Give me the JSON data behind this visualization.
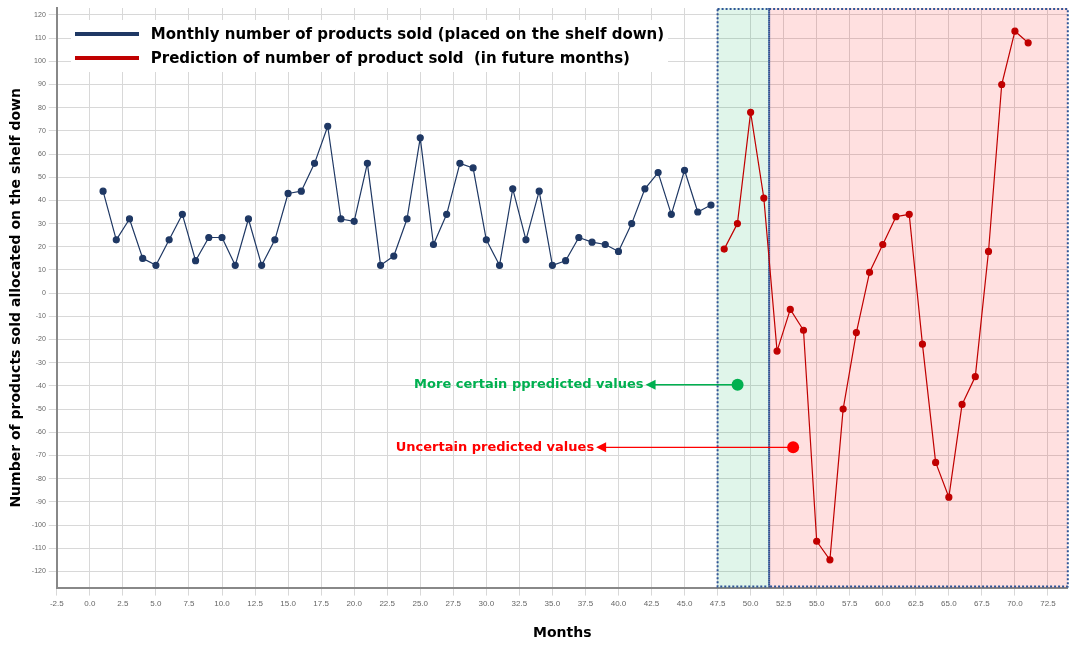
{
  "chart_data": {
    "type": "line",
    "xlabel": "Months",
    "ylabel": "Number of products sold allocated on the shelf down",
    "series": [
      {
        "name": "Monthly number of products sold (placed on the shelf down)",
        "color": "#1f3864",
        "x": [
          1,
          2,
          3,
          4,
          5,
          6,
          7,
          8,
          9,
          10,
          11,
          12,
          13,
          14,
          15,
          16,
          17,
          18,
          19,
          20,
          21,
          22,
          23,
          24,
          25,
          26,
          27,
          28,
          29,
          30,
          31,
          32,
          33,
          34,
          35,
          36,
          37,
          38,
          39,
          40,
          41,
          42,
          43,
          44,
          45,
          46,
          47
        ],
        "values": [
          44,
          23,
          32,
          15,
          12,
          23,
          34,
          14,
          24,
          24,
          12,
          32,
          12,
          23,
          43,
          44,
          56,
          72,
          32,
          31,
          56,
          12,
          16,
          32,
          67,
          21,
          34,
          56,
          54,
          23,
          12,
          45,
          23,
          44,
          12,
          14,
          24,
          22,
          21,
          18,
          30,
          45,
          52,
          34,
          53,
          35,
          38
        ]
      },
      {
        "name": "Prediction of number of product sold  (in future months)",
        "color": "#c00000",
        "x": [
          48,
          49,
          50,
          51,
          52,
          53,
          54,
          55,
          56,
          57,
          58,
          59,
          60,
          61,
          62,
          63,
          64,
          65,
          66,
          67,
          68,
          69,
          70,
          71
        ],
        "values": [
          19,
          30,
          78,
          41,
          -25,
          -7,
          -16,
          -107,
          -115,
          -50,
          -17,
          9,
          21,
          33,
          34,
          -22,
          -73,
          -88,
          -48,
          -36,
          18,
          90,
          113,
          108
        ]
      }
    ],
    "bands": [
      {
        "axis": "x",
        "from": 47.5,
        "to": 51.4,
        "label": "More certain ppredicted values",
        "color": "#00b050"
      },
      {
        "axis": "x",
        "from": 51.4,
        "to": 74,
        "label": "Uncertain predicted values",
        "color": "#ff0000"
      }
    ],
    "xlim": [
      -2.5,
      74
    ],
    "ylim": [
      -127,
      123
    ],
    "xticks": [
      {
        "value": -2.5,
        "label": "-2.5"
      },
      {
        "value": 0,
        "label": "0.0"
      },
      {
        "value": 2.5,
        "label": "2.5"
      },
      {
        "value": 5,
        "label": "5.0"
      },
      {
        "value": 7.5,
        "label": "7.5"
      },
      {
        "value": 10,
        "label": "10.0"
      },
      {
        "value": 12.5,
        "label": "12.5"
      },
      {
        "value": 15,
        "label": "15.0"
      },
      {
        "value": 17.5,
        "label": "17.5"
      },
      {
        "value": 20,
        "label": "20.0"
      },
      {
        "value": 22.5,
        "label": "22.5"
      },
      {
        "value": 25,
        "label": "25.0"
      },
      {
        "value": 27.5,
        "label": "27.5"
      },
      {
        "value": 30,
        "label": "30.0"
      },
      {
        "value": 32.5,
        "label": "32.5"
      },
      {
        "value": 35,
        "label": "35.0"
      },
      {
        "value": 37.5,
        "label": "37.5"
      },
      {
        "value": 40,
        "label": "40.0"
      },
      {
        "value": 42.5,
        "label": "42.5"
      },
      {
        "value": 45,
        "label": "45.0"
      },
      {
        "value": 47.5,
        "label": "47.5"
      },
      {
        "value": 50,
        "label": "50.0"
      },
      {
        "value": 52.5,
        "label": "52.5"
      },
      {
        "value": 55,
        "label": "55.0"
      },
      {
        "value": 57.5,
        "label": "57.5"
      },
      {
        "value": 60,
        "label": "60.0"
      },
      {
        "value": 62.5,
        "label": "62.5"
      },
      {
        "value": 65,
        "label": "65.0"
      },
      {
        "value": 67.5,
        "label": "67.5"
      },
      {
        "value": 70,
        "label": "70.0"
      },
      {
        "value": 72.5,
        "label": "72.5"
      }
    ],
    "yticks": [
      -120,
      -110,
      -100,
      -90,
      -80,
      -70,
      -60,
      -50,
      -40,
      -30,
      -20,
      -10,
      0,
      10,
      20,
      30,
      40,
      50,
      60,
      70,
      80,
      90,
      100,
      110,
      120
    ],
    "grid": true,
    "legend": "top left",
    "marker": "circle",
    "line_style": "solid"
  }
}
